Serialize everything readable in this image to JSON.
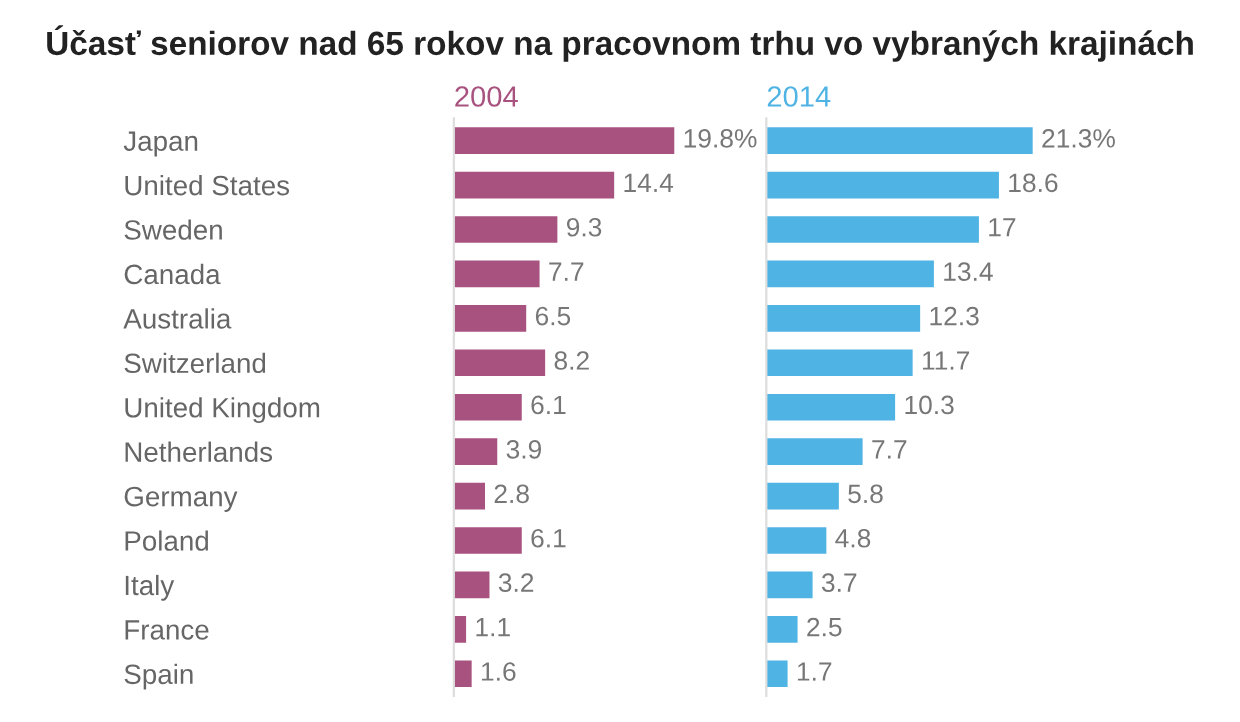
{
  "chart_data": [
    {
      "type": "bar",
      "orientation": "horizontal",
      "title": "Účasť seniorov nad 65 rokov na pracovnom trhu vo vybraných krajinách",
      "subtitle": "2004",
      "categories": [
        "Japan",
        "United States",
        "Sweden",
        "Canada",
        "Australia",
        "Switzerland",
        "United Kingdom",
        "Netherlands",
        "Germany",
        "Poland",
        "Italy",
        "France",
        "Spain"
      ],
      "series": [
        {
          "color": "#a8527f",
          "values": [
            19.8,
            14.4,
            9.3,
            7.7,
            6.5,
            8.2,
            6.1,
            3.9,
            2.8,
            6.1,
            3.2,
            1.1,
            1.6
          ],
          "value_labels": [
            "19.8%",
            "14.4",
            "9.3",
            "7.7",
            "6.5",
            "8.2",
            "6.1",
            "3.9",
            "2.8",
            "6.1",
            "3.2",
            "1.1",
            "1.6"
          ]
        }
      ],
      "tick_labels": "y",
      "grid": false,
      "legend": false
    },
    {
      "type": "bar",
      "orientation": "horizontal",
      "subtitle": "2014",
      "categories": [
        null,
        null,
        null,
        null,
        null,
        null,
        null,
        null,
        null,
        null,
        null,
        null,
        null
      ],
      "series": [
        {
          "color": "#4fb3e3",
          "values": [
            21.3,
            18.6,
            17,
            13.4,
            12.3,
            11.7,
            10.3,
            7.7,
            5.8,
            4.8,
            3.7,
            2.5,
            1.7
          ],
          "value_labels": [
            "21.3%",
            "18.6",
            "17",
            "13.4",
            "12.3",
            "11.7",
            "10.3",
            "7.7",
            "5.8",
            "4.8",
            "3.7",
            "2.5",
            "1.7"
          ]
        }
      ],
      "tick_labels": false,
      "grid": false,
      "legend": false
    }
  ]
}
